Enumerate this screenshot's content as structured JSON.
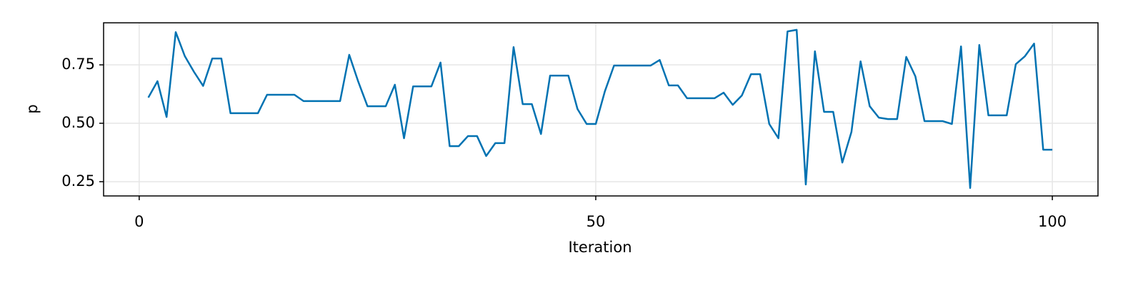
{
  "chart_data": {
    "type": "line",
    "x_label": "Iteration",
    "y_label": "p",
    "x": [
      1,
      2,
      3,
      4,
      5,
      6,
      7,
      8,
      9,
      10,
      11,
      12,
      13,
      14,
      15,
      16,
      17,
      18,
      19,
      20,
      21,
      22,
      23,
      24,
      25,
      26,
      27,
      28,
      29,
      30,
      31,
      32,
      33,
      34,
      35,
      36,
      37,
      38,
      39,
      40,
      41,
      42,
      43,
      44,
      45,
      46,
      47,
      48,
      49,
      50,
      51,
      52,
      53,
      54,
      55,
      56,
      57,
      58,
      59,
      60,
      61,
      62,
      63,
      64,
      65,
      66,
      67,
      68,
      69,
      70,
      71,
      72,
      73,
      74,
      75,
      76,
      77,
      78,
      79,
      80,
      81,
      82,
      83,
      84,
      85,
      86,
      87,
      88,
      89,
      90,
      91,
      92,
      93,
      94,
      95,
      96,
      97,
      98,
      99,
      100
    ],
    "series": [
      {
        "name": "p",
        "color": "#0072b2",
        "values": [
          0.61,
          0.68,
          0.527,
          0.89,
          0.787,
          0.72,
          0.66,
          0.777,
          0.777,
          0.543,
          0.543,
          0.543,
          0.543,
          0.622,
          0.622,
          0.622,
          0.622,
          0.595,
          0.595,
          0.595,
          0.595,
          0.595,
          0.793,
          0.677,
          0.573,
          0.573,
          0.573,
          0.665,
          0.436,
          0.658,
          0.658,
          0.658,
          0.76,
          0.402,
          0.402,
          0.445,
          0.445,
          0.36,
          0.415,
          0.415,
          0.826,
          0.582,
          0.582,
          0.454,
          0.704,
          0.704,
          0.704,
          0.561,
          0.497,
          0.497,
          0.637,
          0.747,
          0.747,
          0.747,
          0.747,
          0.747,
          0.771,
          0.662,
          0.662,
          0.607,
          0.607,
          0.607,
          0.607,
          0.631,
          0.579,
          0.619,
          0.71,
          0.71,
          0.497,
          0.436,
          0.893,
          0.9,
          0.238,
          0.808,
          0.549,
          0.549,
          0.332,
          0.463,
          0.765,
          0.573,
          0.524,
          0.518,
          0.518,
          0.784,
          0.701,
          0.509,
          0.509,
          0.509,
          0.497,
          0.829,
          0.223,
          0.835,
          0.534,
          0.534,
          0.534,
          0.753,
          0.787,
          0.841,
          0.387,
          0.387
        ]
      }
    ],
    "xlim": [
      -3.9,
      105
    ],
    "ylim": [
      0.189,
      0.93
    ],
    "xticks": [
      0,
      50,
      100
    ],
    "yticks": [
      0.25,
      {
        "value": 0.5,
        "label": "0.50"
      },
      0.75
    ],
    "grid": true
  }
}
